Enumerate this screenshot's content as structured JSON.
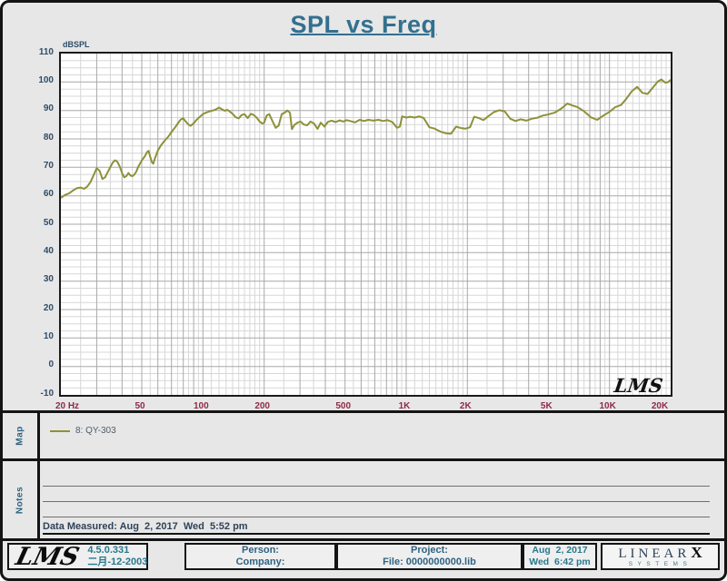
{
  "title": "SPL vs Freq",
  "chart_data": {
    "type": "line",
    "title": "SPL vs Freq",
    "ylabel": "dBSPL",
    "xlabel": "",
    "xlim": [
      20,
      20000
    ],
    "ylim": [
      -10,
      110
    ],
    "x_scale": "log",
    "grid": "on",
    "y_ticks": [
      110,
      100,
      90,
      80,
      70,
      60,
      50,
      40,
      30,
      20,
      10,
      0,
      -10
    ],
    "x_ticks": [
      {
        "label": "20 Hz",
        "value": 20
      },
      {
        "label": "50",
        "value": 50
      },
      {
        "label": "100",
        "value": 100
      },
      {
        "label": "200",
        "value": 200
      },
      {
        "label": "500",
        "value": 500
      },
      {
        "label": "1K",
        "value": 1000
      },
      {
        "label": "2K",
        "value": 2000
      },
      {
        "label": "5K",
        "value": 5000
      },
      {
        "label": "10K",
        "value": 10000
      },
      {
        "label": "20K",
        "value": 20000
      }
    ],
    "watermark": "LMS",
    "series": [
      {
        "name": "8: QY-303",
        "color": "#8e9139",
        "points": [
          [
            20,
            59.3
          ],
          [
            21,
            60.3
          ],
          [
            22,
            60.9
          ],
          [
            23,
            61.9
          ],
          [
            24,
            62.7
          ],
          [
            25,
            62.9
          ],
          [
            26,
            62.4
          ],
          [
            27,
            63.3
          ],
          [
            28,
            64.9
          ],
          [
            29,
            67.3
          ],
          [
            30,
            69.7
          ],
          [
            31,
            68.8
          ],
          [
            32,
            65.9
          ],
          [
            33,
            66.5
          ],
          [
            34,
            68.3
          ],
          [
            35,
            70.1
          ],
          [
            36,
            71.7
          ],
          [
            37,
            72.5
          ],
          [
            38,
            71.9
          ],
          [
            39,
            70.2
          ],
          [
            40,
            68.0
          ],
          [
            41,
            66.5
          ],
          [
            42,
            66.9
          ],
          [
            43,
            68.0
          ],
          [
            44,
            67.1
          ],
          [
            45,
            66.9
          ],
          [
            46,
            67.5
          ],
          [
            47,
            68.5
          ],
          [
            48,
            70.1
          ],
          [
            50,
            72.4
          ],
          [
            52,
            74.1
          ],
          [
            53,
            75.3
          ],
          [
            54,
            75.8
          ],
          [
            55,
            73.7
          ],
          [
            56,
            71.9
          ],
          [
            57,
            71.3
          ],
          [
            58,
            73.1
          ],
          [
            60,
            75.9
          ],
          [
            62,
            77.6
          ],
          [
            64,
            78.9
          ],
          [
            66,
            80.0
          ],
          [
            68,
            81.1
          ],
          [
            70,
            82.4
          ],
          [
            73,
            84.1
          ],
          [
            76,
            85.9
          ],
          [
            78,
            86.9
          ],
          [
            80,
            87.2
          ],
          [
            82,
            86.2
          ],
          [
            85,
            85.0
          ],
          [
            87,
            84.6
          ],
          [
            90,
            85.5
          ],
          [
            93,
            86.7
          ],
          [
            97,
            87.9
          ],
          [
            100,
            88.7
          ],
          [
            104,
            89.3
          ],
          [
            108,
            89.7
          ],
          [
            112,
            90.0
          ],
          [
            116,
            90.4
          ],
          [
            120,
            91.0
          ],
          [
            124,
            90.4
          ],
          [
            128,
            89.9
          ],
          [
            132,
            90.2
          ],
          [
            136,
            89.5
          ],
          [
            140,
            88.8
          ],
          [
            145,
            87.6
          ],
          [
            150,
            87.2
          ],
          [
            155,
            88.4
          ],
          [
            160,
            88.7
          ],
          [
            166,
            87.3
          ],
          [
            172,
            88.8
          ],
          [
            178,
            88.4
          ],
          [
            184,
            87.4
          ],
          [
            190,
            86.1
          ],
          [
            196,
            85.4
          ],
          [
            200,
            85.7
          ],
          [
            206,
            88.2
          ],
          [
            212,
            88.7
          ],
          [
            220,
            86.2
          ],
          [
            228,
            83.9
          ],
          [
            236,
            84.7
          ],
          [
            244,
            88.7
          ],
          [
            252,
            89.2
          ],
          [
            260,
            90.0
          ],
          [
            268,
            89.2
          ],
          [
            274,
            83.4
          ],
          [
            282,
            84.9
          ],
          [
            292,
            85.7
          ],
          [
            302,
            86.1
          ],
          [
            314,
            85.0
          ],
          [
            326,
            84.8
          ],
          [
            338,
            86.1
          ],
          [
            352,
            85.4
          ],
          [
            366,
            83.5
          ],
          [
            380,
            85.7
          ],
          [
            396,
            84.3
          ],
          [
            412,
            86.0
          ],
          [
            430,
            86.4
          ],
          [
            450,
            85.9
          ],
          [
            470,
            86.5
          ],
          [
            490,
            86.1
          ],
          [
            510,
            86.6
          ],
          [
            535,
            86.2
          ],
          [
            560,
            85.8
          ],
          [
            590,
            86.7
          ],
          [
            620,
            86.3
          ],
          [
            650,
            86.7
          ],
          [
            690,
            86.4
          ],
          [
            730,
            86.7
          ],
          [
            770,
            86.3
          ],
          [
            810,
            86.6
          ],
          [
            855,
            85.9
          ],
          [
            900,
            83.9
          ],
          [
            930,
            84.3
          ],
          [
            955,
            87.9
          ],
          [
            1000,
            87.5
          ],
          [
            1050,
            87.8
          ],
          [
            1100,
            87.5
          ],
          [
            1160,
            87.9
          ],
          [
            1220,
            87.3
          ],
          [
            1300,
            84.1
          ],
          [
            1380,
            83.6
          ],
          [
            1470,
            82.6
          ],
          [
            1560,
            82.0
          ],
          [
            1660,
            81.8
          ],
          [
            1760,
            84.3
          ],
          [
            1860,
            83.8
          ],
          [
            1960,
            83.6
          ],
          [
            2060,
            84.1
          ],
          [
            2160,
            87.8
          ],
          [
            2280,
            87.3
          ],
          [
            2400,
            86.6
          ],
          [
            2550,
            88.1
          ],
          [
            2700,
            89.4
          ],
          [
            2870,
            90.1
          ],
          [
            3050,
            89.7
          ],
          [
            3250,
            87.1
          ],
          [
            3450,
            86.3
          ],
          [
            3650,
            86.9
          ],
          [
            3900,
            86.4
          ],
          [
            4150,
            87.1
          ],
          [
            4400,
            87.4
          ],
          [
            4700,
            88.2
          ],
          [
            5000,
            88.6
          ],
          [
            5400,
            89.3
          ],
          [
            5800,
            90.7
          ],
          [
            6200,
            92.4
          ],
          [
            6600,
            91.7
          ],
          [
            7000,
            91.1
          ],
          [
            7500,
            89.7
          ],
          [
            8100,
            87.6
          ],
          [
            8700,
            86.7
          ],
          [
            9300,
            88.1
          ],
          [
            10000,
            89.5
          ],
          [
            10700,
            91.2
          ],
          [
            11400,
            91.9
          ],
          [
            12100,
            94.1
          ],
          [
            12900,
            96.8
          ],
          [
            13700,
            98.3
          ],
          [
            14500,
            96.2
          ],
          [
            15400,
            95.8
          ],
          [
            16300,
            97.9
          ],
          [
            17300,
            100.2
          ],
          [
            18000,
            100.9
          ],
          [
            18800,
            99.8
          ],
          [
            19400,
            99.9
          ],
          [
            20000,
            100.8
          ]
        ]
      }
    ]
  },
  "map_section": {
    "label": "Map",
    "legend": [
      {
        "name": "8: QY-303",
        "color": "#8e9139"
      }
    ]
  },
  "notes_section": {
    "label": "Notes",
    "data_measured": "Data Measured: Aug  2, 2017  Wed  5:52 pm"
  },
  "footer": {
    "logo": "LMS",
    "version": "4.5.0.331",
    "build_date": "二月-12-2003",
    "person_label": "Person:",
    "company_label": "Company:",
    "project_label": "Project:",
    "file_label": "File: 0000000000.lib",
    "date": "Aug  2, 2017",
    "time": "Wed  6:42 pm",
    "brand_main": "LINEAR",
    "brand_x": "X",
    "brand_sub": "SYSTEMS"
  },
  "colors": {
    "background": "#e7e7e7",
    "plot_bg": "#ffffff",
    "title": "#33708f",
    "y_axis_text": "#2e4d69",
    "x_axis_text": "#8f2b48",
    "curve": "#8e9139",
    "teal_text": "#27798e",
    "grid_major": "#a8a8a8",
    "grid_minor": "#d7d7d7"
  }
}
